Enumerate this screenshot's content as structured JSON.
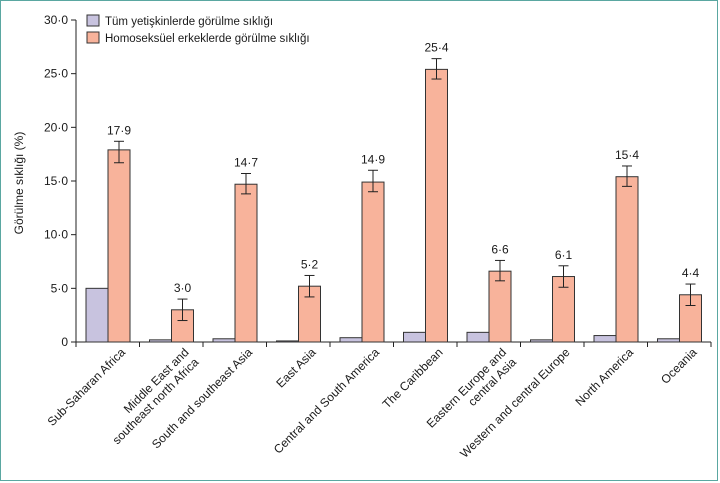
{
  "chart_data": {
    "type": "bar",
    "ylabel": "Görülme sıklığı  (%)",
    "xlabel": "",
    "ylim": [
      0,
      30
    ],
    "yticks": [
      0,
      5,
      10,
      15,
      20,
      25,
      30
    ],
    "ytick_labels": [
      "0",
      "5·0",
      "10·0",
      "15·0",
      "20·0",
      "25·0",
      "30·0"
    ],
    "grid": false,
    "legend_position": "top-left",
    "categories": [
      [
        "Sub-Saharan Africa"
      ],
      [
        "Middle East and",
        "southeast north Africa"
      ],
      [
        "South and southeast Asia"
      ],
      [
        "East Asia"
      ],
      [
        "Central and South America"
      ],
      [
        "The Caribbean"
      ],
      [
        "Eastern Europe and",
        "central Asia"
      ],
      [
        "Western and central Europe"
      ],
      [
        "North America"
      ],
      [
        "Oceania"
      ]
    ],
    "series": [
      {
        "name": "Tüm yetişkinlerde görülme sıklığı",
        "color": "#c8c3df",
        "values": [
          5.0,
          0.2,
          0.3,
          0.1,
          0.4,
          0.9,
          0.9,
          0.2,
          0.6,
          0.3
        ]
      },
      {
        "name": "Homoseksüel erkeklerde görülme sıklığı",
        "color": "#f8b39b",
        "values": [
          17.9,
          3.0,
          14.7,
          5.2,
          14.9,
          25.4,
          6.6,
          6.1,
          15.4,
          4.4
        ],
        "value_labels": [
          "17·9",
          "3·0",
          "14·7",
          "5·2",
          "14·9",
          "25·4",
          "6·6",
          "6·1",
          "15·4",
          "4·4"
        ],
        "error_low": [
          16.7,
          2.0,
          13.8,
          4.2,
          14.0,
          24.5,
          5.7,
          5.1,
          14.5,
          3.4
        ],
        "error_high": [
          18.7,
          4.0,
          15.7,
          6.2,
          16.0,
          26.4,
          7.6,
          7.1,
          16.4,
          5.4
        ]
      }
    ]
  }
}
